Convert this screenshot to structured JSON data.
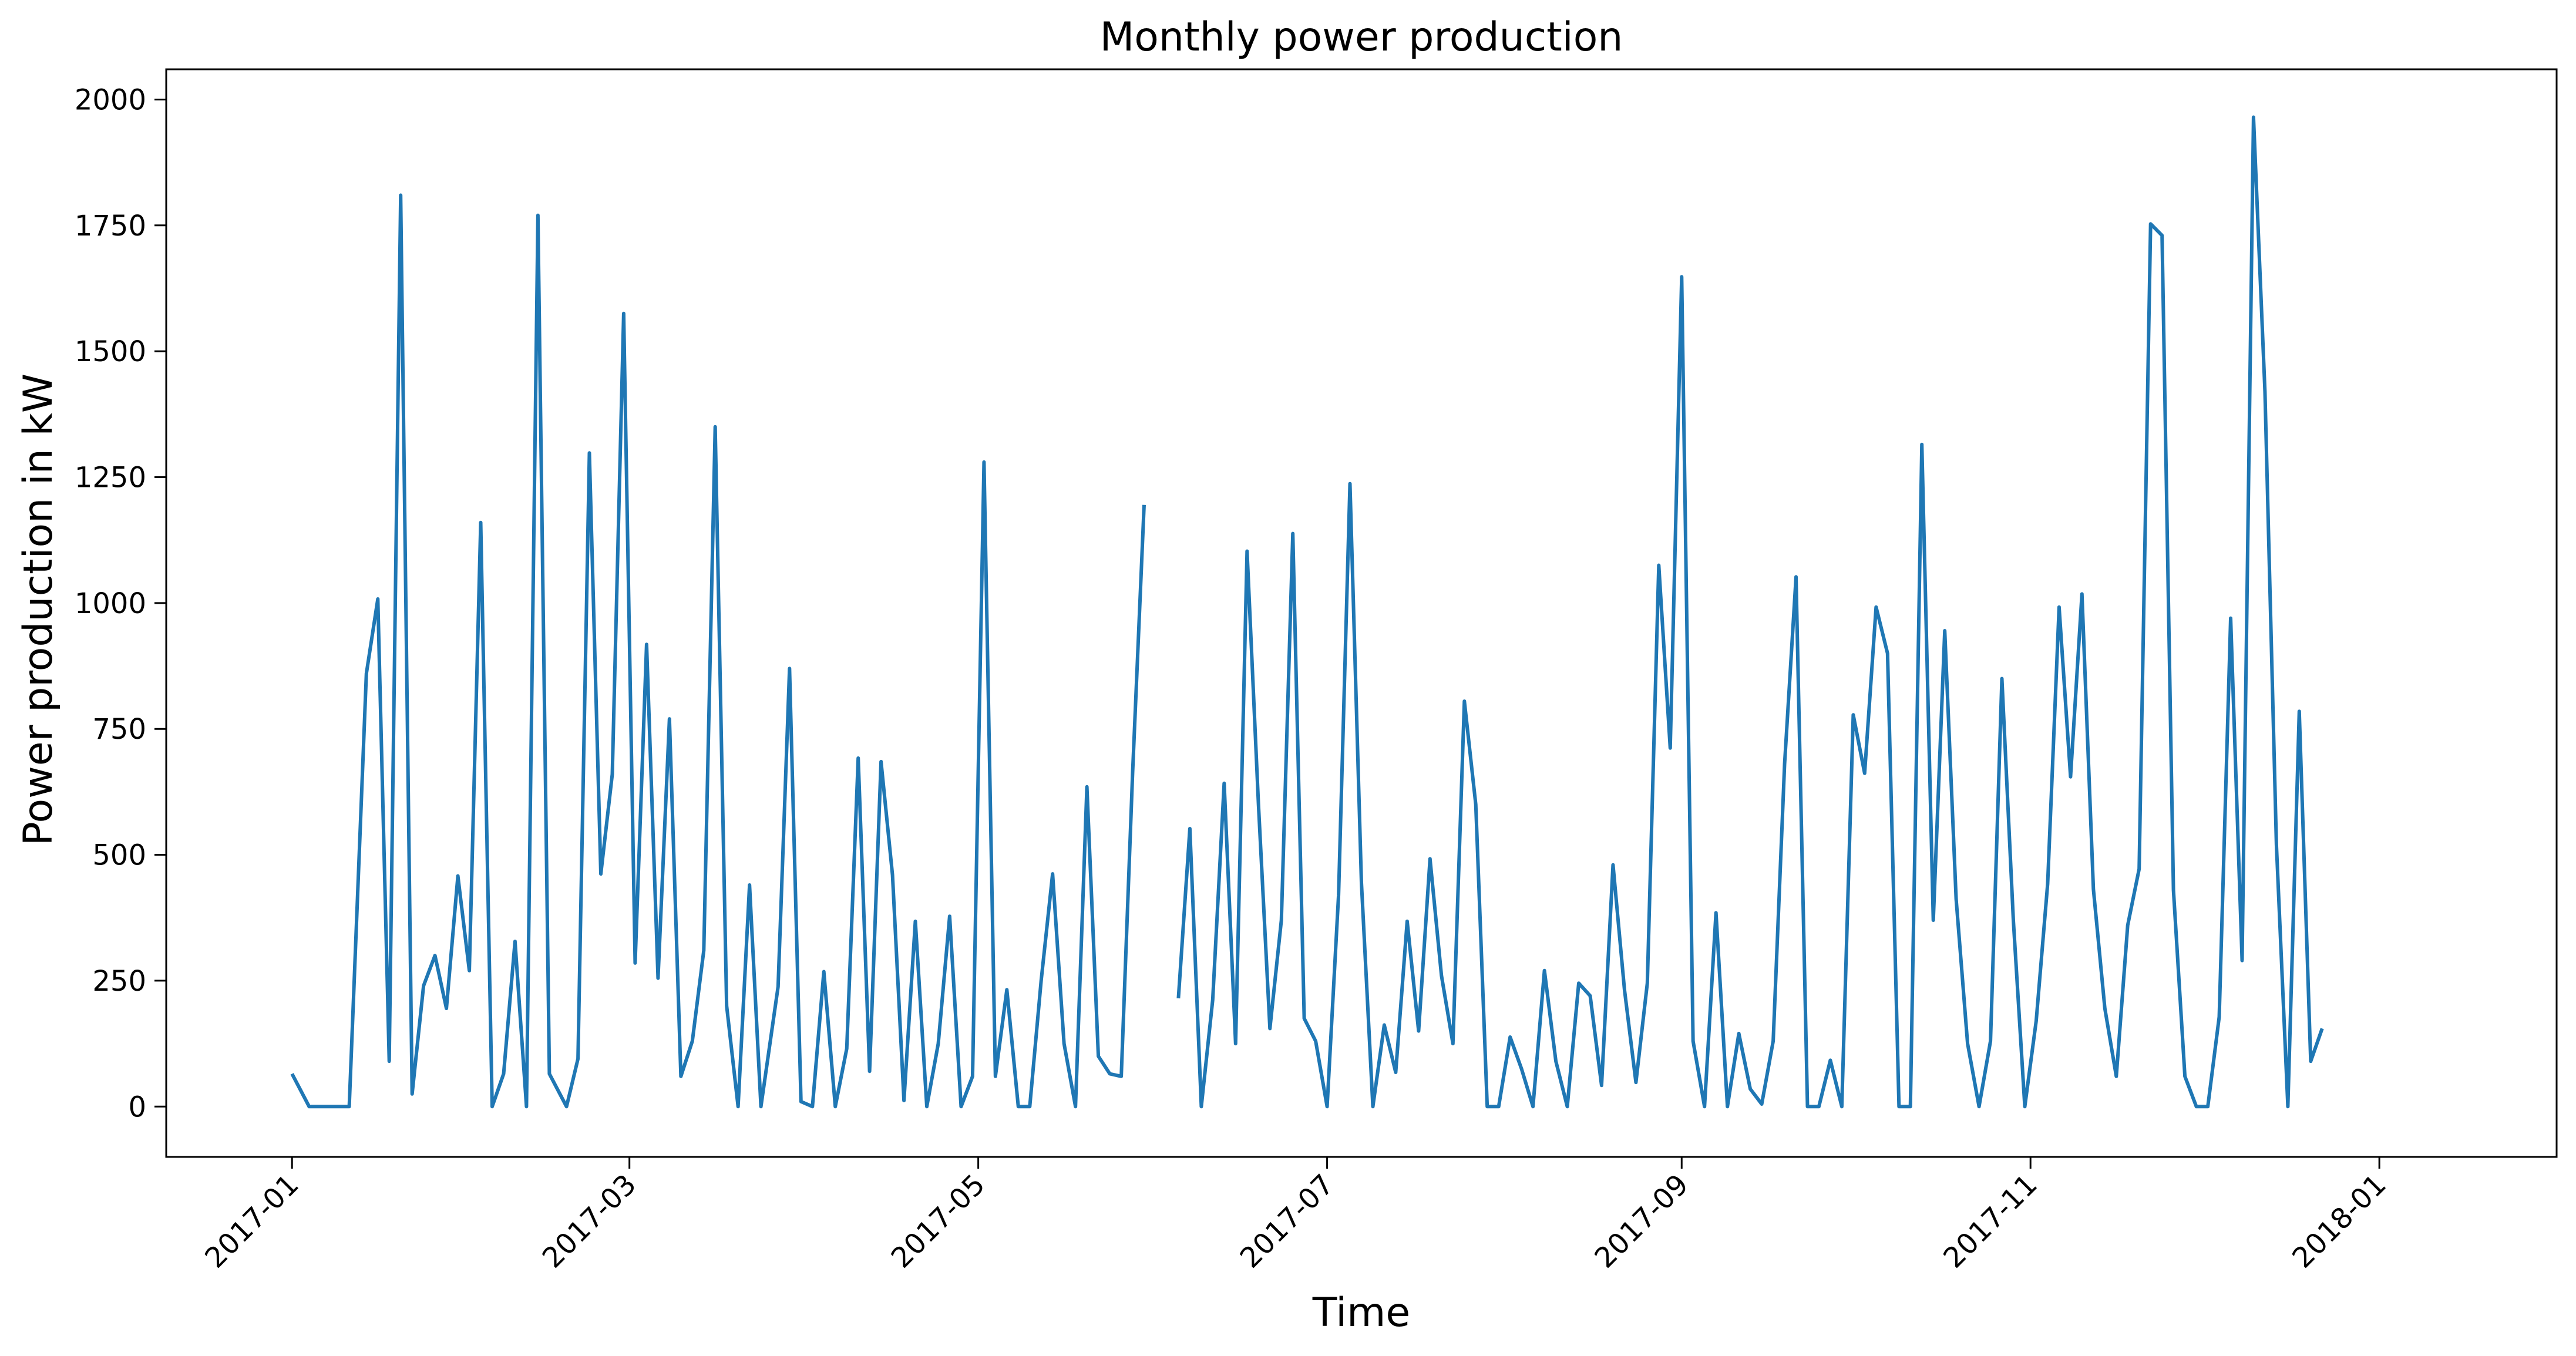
{
  "chart_data": {
    "type": "line",
    "title": "Monthly power production",
    "xlabel": "Time",
    "ylabel": "Power production in kW",
    "xlim": [
      "2016-12-10",
      "2018-02-01"
    ],
    "ylim": [
      -100,
      2060
    ],
    "yticks": [
      0,
      250,
      500,
      750,
      1000,
      1250,
      1500,
      1750,
      2000
    ],
    "xticks": [
      "2017-01",
      "2017-03",
      "2017-05",
      "2017-07",
      "2017-09",
      "2017-11",
      "2018-01"
    ],
    "tick_dates": [
      "2017-01-01",
      "2017-03-01",
      "2017-05-01",
      "2017-07-01",
      "2017-09-01",
      "2017-11-01",
      "2018-01-01"
    ],
    "grid": false,
    "legend": false,
    "line_color": "#1f77b4",
    "series": [
      {
        "segments": [
          [
            [
              "2017-01-01",
              65
            ],
            [
              "2017-01-04",
              0
            ],
            [
              "2017-01-08",
              0
            ],
            [
              "2017-01-11",
              0
            ],
            [
              "2017-01-14",
              860
            ],
            [
              "2017-01-16",
              1008
            ],
            [
              "2017-01-18",
              90
            ],
            [
              "2017-01-20",
              1810
            ],
            [
              "2017-01-22",
              25
            ],
            [
              "2017-01-24",
              240
            ],
            [
              "2017-01-26",
              300
            ],
            [
              "2017-01-28",
              195
            ],
            [
              "2017-01-30",
              458
            ],
            [
              "2017-02-01",
              270
            ],
            [
              "2017-02-03",
              1160
            ],
            [
              "2017-02-05",
              0
            ],
            [
              "2017-02-07",
              65
            ],
            [
              "2017-02-09",
              328
            ],
            [
              "2017-02-11",
              0
            ],
            [
              "2017-02-13",
              1770
            ],
            [
              "2017-02-15",
              65
            ],
            [
              "2017-02-18",
              0
            ],
            [
              "2017-02-20",
              95
            ],
            [
              "2017-02-22",
              1298
            ],
            [
              "2017-02-24",
              462
            ],
            [
              "2017-02-26",
              660
            ],
            [
              "2017-02-28",
              1575
            ],
            [
              "2017-03-02",
              285
            ],
            [
              "2017-03-04",
              918
            ],
            [
              "2017-03-06",
              255
            ],
            [
              "2017-03-08",
              770
            ],
            [
              "2017-03-10",
              60
            ],
            [
              "2017-03-12",
              130
            ],
            [
              "2017-03-14",
              310
            ],
            [
              "2017-03-16",
              1350
            ],
            [
              "2017-03-18",
              200
            ],
            [
              "2017-03-20",
              0
            ],
            [
              "2017-03-22",
              440
            ],
            [
              "2017-03-24",
              0
            ],
            [
              "2017-03-27",
              238
            ],
            [
              "2017-03-29",
              870
            ],
            [
              "2017-03-31",
              10
            ],
            [
              "2017-04-02",
              0
            ],
            [
              "2017-04-04",
              268
            ],
            [
              "2017-04-06",
              0
            ],
            [
              "2017-04-08",
              115
            ],
            [
              "2017-04-10",
              692
            ],
            [
              "2017-04-12",
              70
            ],
            [
              "2017-04-14",
              685
            ],
            [
              "2017-04-16",
              460
            ],
            [
              "2017-04-18",
              12
            ],
            [
              "2017-04-20",
              368
            ],
            [
              "2017-04-22",
              0
            ],
            [
              "2017-04-24",
              125
            ],
            [
              "2017-04-26",
              378
            ],
            [
              "2017-04-28",
              0
            ],
            [
              "2017-04-30",
              60
            ],
            [
              "2017-05-02",
              1280
            ],
            [
              "2017-05-04",
              60
            ],
            [
              "2017-05-06",
              232
            ],
            [
              "2017-05-08",
              0
            ],
            [
              "2017-05-10",
              0
            ],
            [
              "2017-05-12",
              250
            ],
            [
              "2017-05-14",
              462
            ],
            [
              "2017-05-16",
              125
            ],
            [
              "2017-05-18",
              0
            ],
            [
              "2017-05-20",
              635
            ],
            [
              "2017-05-22",
              100
            ],
            [
              "2017-05-24",
              65
            ],
            [
              "2017-05-26",
              60
            ],
            [
              "2017-05-28",
              665
            ],
            [
              "2017-05-30",
              1195
            ]
          ],
          [
            [
              "2017-06-05",
              215
            ],
            [
              "2017-06-07",
              552
            ],
            [
              "2017-06-09",
              0
            ],
            [
              "2017-06-11",
              212
            ],
            [
              "2017-06-13",
              642
            ],
            [
              "2017-06-15",
              125
            ],
            [
              "2017-06-17",
              1103
            ],
            [
              "2017-06-19",
              600
            ],
            [
              "2017-06-21",
              155
            ],
            [
              "2017-06-23",
              370
            ],
            [
              "2017-06-25",
              1138
            ],
            [
              "2017-06-27",
              175
            ],
            [
              "2017-06-29",
              130
            ],
            [
              "2017-07-01",
              0
            ],
            [
              "2017-07-03",
              420
            ],
            [
              "2017-07-05",
              1237
            ],
            [
              "2017-07-07",
              445
            ],
            [
              "2017-07-09",
              0
            ],
            [
              "2017-07-11",
              162
            ],
            [
              "2017-07-13",
              68
            ],
            [
              "2017-07-15",
              368
            ],
            [
              "2017-07-17",
              150
            ],
            [
              "2017-07-19",
              492
            ],
            [
              "2017-07-21",
              260
            ],
            [
              "2017-07-23",
              125
            ],
            [
              "2017-07-25",
              805
            ],
            [
              "2017-07-27",
              600
            ],
            [
              "2017-07-29",
              0
            ],
            [
              "2017-07-31",
              0
            ],
            [
              "2017-08-02",
              138
            ],
            [
              "2017-08-04",
              75
            ],
            [
              "2017-08-06",
              0
            ],
            [
              "2017-08-08",
              270
            ],
            [
              "2017-08-10",
              90
            ],
            [
              "2017-08-12",
              0
            ],
            [
              "2017-08-14",
              245
            ],
            [
              "2017-08-16",
              220
            ],
            [
              "2017-08-18",
              42
            ],
            [
              "2017-08-20",
              480
            ],
            [
              "2017-08-22",
              232
            ],
            [
              "2017-08-24",
              48
            ],
            [
              "2017-08-26",
              245
            ],
            [
              "2017-08-28",
              1075
            ],
            [
              "2017-08-30",
              712
            ],
            [
              "2017-09-01",
              1648
            ],
            [
              "2017-09-03",
              130
            ],
            [
              "2017-09-05",
              0
            ],
            [
              "2017-09-07",
              385
            ],
            [
              "2017-09-09",
              0
            ],
            [
              "2017-09-11",
              145
            ],
            [
              "2017-09-13",
              35
            ],
            [
              "2017-09-15",
              5
            ],
            [
              "2017-09-17",
              130
            ],
            [
              "2017-09-19",
              680
            ],
            [
              "2017-09-21",
              1052
            ],
            [
              "2017-09-23",
              0
            ],
            [
              "2017-09-25",
              0
            ],
            [
              "2017-09-27",
              92
            ],
            [
              "2017-09-29",
              0
            ],
            [
              "2017-10-01",
              778
            ],
            [
              "2017-10-03",
              662
            ],
            [
              "2017-10-05",
              992
            ],
            [
              "2017-10-07",
              900
            ],
            [
              "2017-10-09",
              0
            ],
            [
              "2017-10-11",
              0
            ],
            [
              "2017-10-13",
              1315
            ],
            [
              "2017-10-15",
              370
            ],
            [
              "2017-10-17",
              945
            ],
            [
              "2017-10-19",
              412
            ],
            [
              "2017-10-21",
              125
            ],
            [
              "2017-10-23",
              0
            ],
            [
              "2017-10-25",
              130
            ],
            [
              "2017-10-27",
              850
            ],
            [
              "2017-10-29",
              370
            ],
            [
              "2017-10-31",
              0
            ],
            [
              "2017-11-02",
              170
            ],
            [
              "2017-11-04",
              442
            ],
            [
              "2017-11-06",
              992
            ],
            [
              "2017-11-08",
              655
            ],
            [
              "2017-11-10",
              1018
            ],
            [
              "2017-11-12",
              432
            ],
            [
              "2017-11-14",
              195
            ],
            [
              "2017-11-16",
              60
            ],
            [
              "2017-11-18",
              360
            ],
            [
              "2017-11-20",
              472
            ],
            [
              "2017-11-22",
              1753
            ],
            [
              "2017-11-24",
              1730
            ],
            [
              "2017-11-26",
              430
            ],
            [
              "2017-11-28",
              60
            ],
            [
              "2017-11-30",
              0
            ],
            [
              "2017-12-02",
              0
            ],
            [
              "2017-12-04",
              178
            ],
            [
              "2017-12-06",
              970
            ],
            [
              "2017-12-08",
              290
            ],
            [
              "2017-12-10",
              1965
            ],
            [
              "2017-12-12",
              1420
            ],
            [
              "2017-12-14",
              520
            ],
            [
              "2017-12-16",
              0
            ],
            [
              "2017-12-18",
              785
            ],
            [
              "2017-12-20",
              90
            ],
            [
              "2017-12-22",
              155
            ]
          ]
        ]
      }
    ]
  }
}
